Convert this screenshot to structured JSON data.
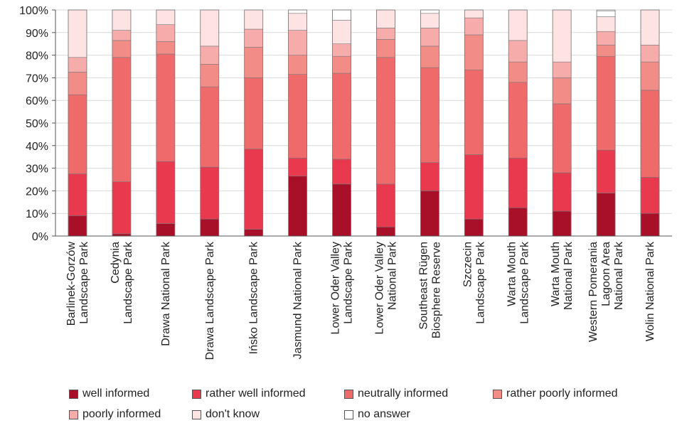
{
  "chart_data": {
    "type": "bar",
    "stacked": true,
    "normalized": true,
    "ylim": [
      0,
      100
    ],
    "yticks": [
      "0%",
      "10%",
      "20%",
      "30%",
      "40%",
      "50%",
      "60%",
      "70%",
      "80%",
      "90%",
      "100%"
    ],
    "categories": [
      [
        "Barlinek-Gorzów",
        "Landscape Park"
      ],
      [
        "Cedynia",
        "Landscape Park"
      ],
      [
        "Drawa National Park"
      ],
      [
        "Drawa Landscape Park"
      ],
      [
        "Ińsko Landscape Park"
      ],
      [
        "Jasmund National Park"
      ],
      [
        "Lower Oder Valley",
        "Landscape Park"
      ],
      [
        "Lower Oder Valley",
        "National Park"
      ],
      [
        "Southeast Rügen",
        "Biosphere Reserve"
      ],
      [
        "Szczecin",
        "Landscape Park"
      ],
      [
        "Warta Mouth",
        "Landscape Park"
      ],
      [
        "Warta Mouth",
        "National Park"
      ],
      [
        "Western Pomerania",
        "Lagoon Area",
        "National Park"
      ],
      [
        "Wolin National Park"
      ]
    ],
    "series": [
      {
        "name": "well informed",
        "color": "#a8102a",
        "values": [
          9,
          1,
          5.5,
          7.5,
          3,
          26.5,
          23,
          4,
          20,
          7.5,
          12.5,
          11,
          19,
          10
        ]
      },
      {
        "name": "rather well informed",
        "color": "#e8394f",
        "values": [
          18.5,
          23,
          27.5,
          23,
          35.5,
          8,
          11,
          19,
          12.5,
          28.5,
          22,
          17,
          19,
          16
        ]
      },
      {
        "name": "neutrally informed",
        "color": "#ef6b6b",
        "values": [
          35,
          55,
          47.5,
          35.5,
          31.5,
          37,
          38,
          56,
          42,
          37.5,
          33.5,
          30.5,
          41.5,
          38.5
        ]
      },
      {
        "name": "rather poorly informed",
        "color": "#f28c86",
        "values": [
          10,
          7.5,
          5.5,
          10,
          13.5,
          8.5,
          7.5,
          8,
          9.5,
          15.5,
          9,
          11.5,
          5,
          12.5
        ]
      },
      {
        "name": "poorly informed",
        "color": "#f7acac",
        "values": [
          6.5,
          4.5,
          7.5,
          8,
          8,
          11,
          5.5,
          5,
          8,
          7.5,
          9.5,
          7,
          6,
          7.5
        ]
      },
      {
        "name": "don't know",
        "color": "#fde3e3",
        "values": [
          21,
          9,
          6.5,
          16,
          8.5,
          7.5,
          10.5,
          8,
          6.5,
          3.5,
          13.5,
          23,
          6.5,
          15.5
        ]
      },
      {
        "name": "no answer",
        "color": "#ffffff",
        "values": [
          0,
          0,
          0,
          0,
          0,
          1.5,
          4.5,
          0,
          1.5,
          0,
          0,
          0,
          2.5,
          0
        ]
      }
    ],
    "legend_position": "bottom"
  }
}
